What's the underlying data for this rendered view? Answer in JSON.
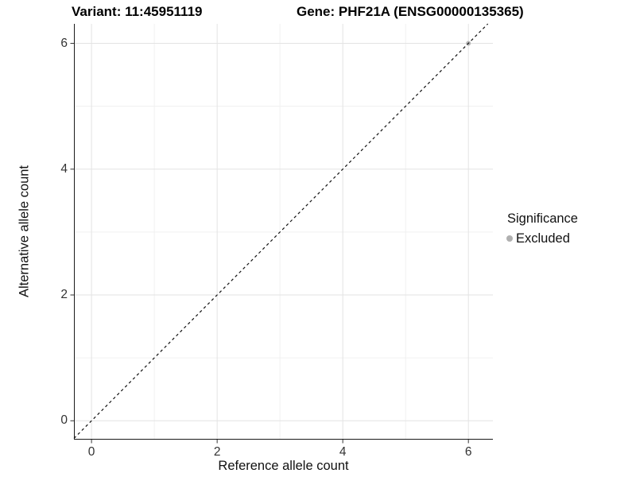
{
  "figure": {
    "title_left": "Variant: 11:45951119",
    "title_right": "Gene: PHF21A (ENSG00000135365)"
  },
  "chart_data": {
    "type": "scatter",
    "title": "Variant: 11:45951119  Gene: PHF21A (ENSG00000135365)",
    "xlabel": "Reference allele count",
    "ylabel": "Alternative allele count",
    "xlim": [
      -0.28,
      6.39
    ],
    "ylim": [
      -0.3,
      6.31
    ],
    "x_ticks": {
      "values": [
        0,
        2,
        4,
        6
      ],
      "labels": [
        "0",
        "2",
        "4",
        "6"
      ],
      "minor": [
        1,
        3,
        5
      ]
    },
    "y_ticks": {
      "values": [
        0,
        2,
        4,
        6
      ],
      "labels": [
        "0",
        "2",
        "4",
        "6"
      ],
      "minor": [
        1,
        3,
        5
      ]
    },
    "grid": true,
    "reference_line": {
      "kind": "identity",
      "slope": 1,
      "intercept": 0,
      "style": "dashed",
      "color": "#111111"
    },
    "series": [
      {
        "name": "Excluded",
        "points": [
          {
            "x": 6,
            "y": 6
          }
        ],
        "color": "#b5b5b5",
        "point_radius": 3
      }
    ],
    "legend": {
      "position": "right",
      "title": "Significance",
      "items": [
        {
          "label": "Excluded",
          "color": "#b0b0b0"
        }
      ]
    },
    "colors": {
      "background": "#ffffff",
      "grid_major": "#e3e3e3",
      "grid_minor": "#f0f0f0",
      "axis_line": "#1a1a1a",
      "tick_mark": "#333333",
      "tick_label": "#333333"
    }
  }
}
